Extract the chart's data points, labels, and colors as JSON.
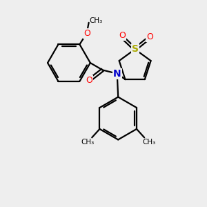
{
  "bg_color": "#eeeeee",
  "line_color": "#000000",
  "bond_lw": 1.6,
  "S_color": "#aaaa00",
  "O_color": "#ff0000",
  "N_color": "#0000cc",
  "C_color": "#000000",
  "methyl_label": "CH₃",
  "methoxy_label": "O",
  "n_label": "N",
  "s_label": "S",
  "o_label": "O"
}
